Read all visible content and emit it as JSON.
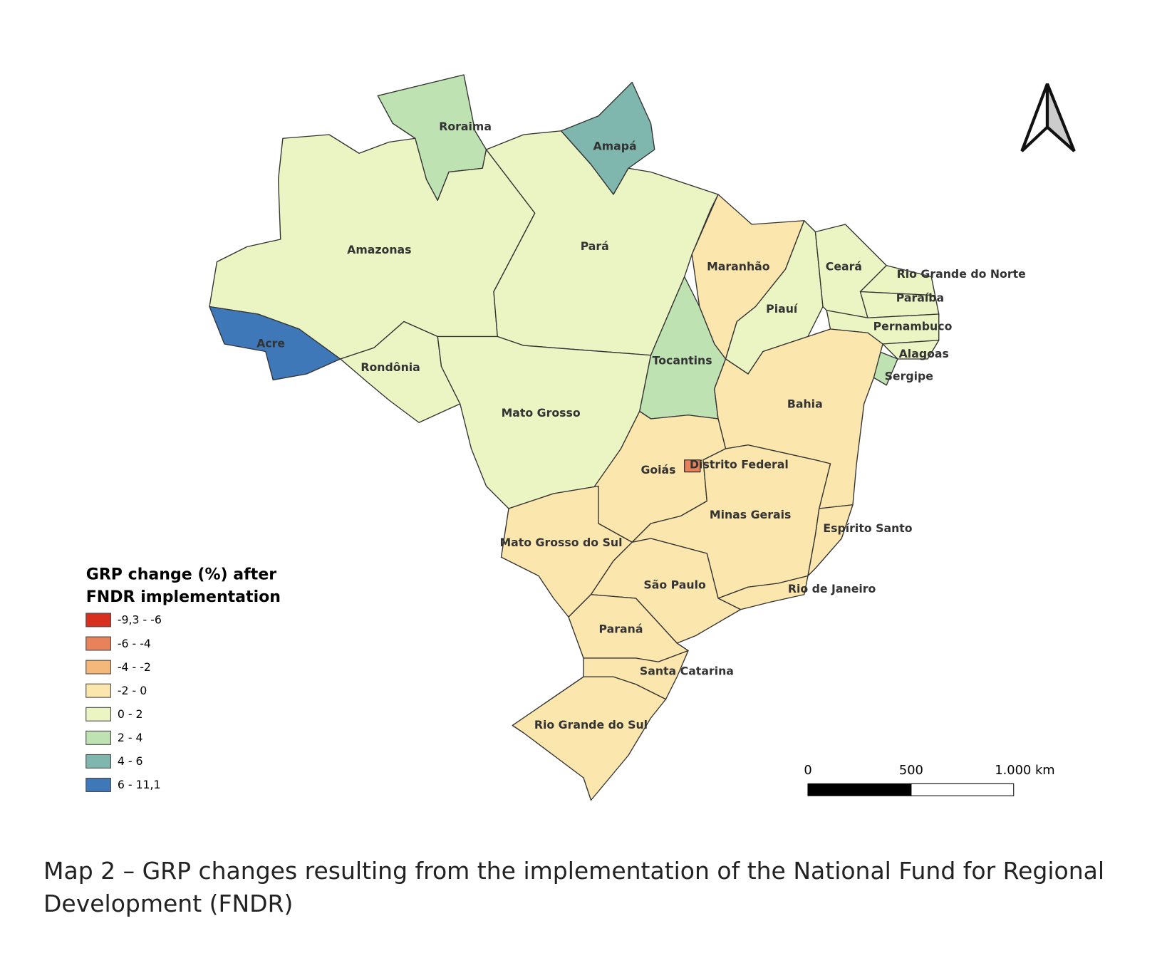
{
  "legend": {
    "title": [
      "GRP change (%) after",
      "FNDR implementation"
    ],
    "items": [
      {
        "label": "-9,3 - -6",
        "color": "#d7301f"
      },
      {
        "label": "-6 - -4",
        "color": "#e8825a"
      },
      {
        "label": "-4 - -2",
        "color": "#f4b87a"
      },
      {
        "label": "-2 - 0",
        "color": "#fbe6ad"
      },
      {
        "label": "0 - 2",
        "color": "#ebf4c3"
      },
      {
        "label": "2 - 4",
        "color": "#bfe2b3"
      },
      {
        "label": "4 - 6",
        "color": "#7fb7ae"
      },
      {
        "label": "6 - 11,1",
        "color": "#3f78b8"
      }
    ]
  },
  "states": [
    {
      "name": "Roraima",
      "range": "2 - 4"
    },
    {
      "name": "Amapá",
      "range": "4 - 6"
    },
    {
      "name": "Amazonas",
      "range": "0 - 2"
    },
    {
      "name": "Acre",
      "range": "6 - 11,1"
    },
    {
      "name": "Rondônia",
      "range": "0 - 2"
    },
    {
      "name": "Pará",
      "range": "0 - 2"
    },
    {
      "name": "Mato Grosso",
      "range": "0 - 2"
    },
    {
      "name": "Maranhão",
      "range": "-2 - 0"
    },
    {
      "name": "Piauí",
      "range": "0 - 2"
    },
    {
      "name": "Ceará",
      "range": "0 - 2"
    },
    {
      "name": "Rio Grande do Norte",
      "range": "0 - 2"
    },
    {
      "name": "Paraíba",
      "range": "0 - 2"
    },
    {
      "name": "Pernambuco",
      "range": "0 - 2"
    },
    {
      "name": "Alagoas",
      "range": "0 - 2"
    },
    {
      "name": "Sergipe",
      "range": "2 - 4"
    },
    {
      "name": "Tocantins",
      "range": "2 - 4"
    },
    {
      "name": "Bahia",
      "range": "-2 - 0"
    },
    {
      "name": "Goiás",
      "range": "-2 - 0"
    },
    {
      "name": "Distrito Federal",
      "range": "-6 - -4"
    },
    {
      "name": "Minas Gerais",
      "range": "-2 - 0"
    },
    {
      "name": "Espírito Santo",
      "range": "-2 - 0"
    },
    {
      "name": "Rio de Janeiro",
      "range": "-2 - 0"
    },
    {
      "name": "Mato Grosso do Sul",
      "range": "-2 - 0"
    },
    {
      "name": "São Paulo",
      "range": "-2 - 0"
    },
    {
      "name": "Paraná",
      "range": "-2 - 0"
    },
    {
      "name": "Santa Catarina",
      "range": "-2 - 0"
    },
    {
      "name": "Rio Grande do Sul",
      "range": "-2 - 0"
    }
  ],
  "scale_bar": {
    "labels": [
      "0",
      "500",
      "1.000 km"
    ]
  },
  "caption": "Map 2 – GRP changes resulting from the implementation of the National Fund for Regional Development (FNDR)"
}
